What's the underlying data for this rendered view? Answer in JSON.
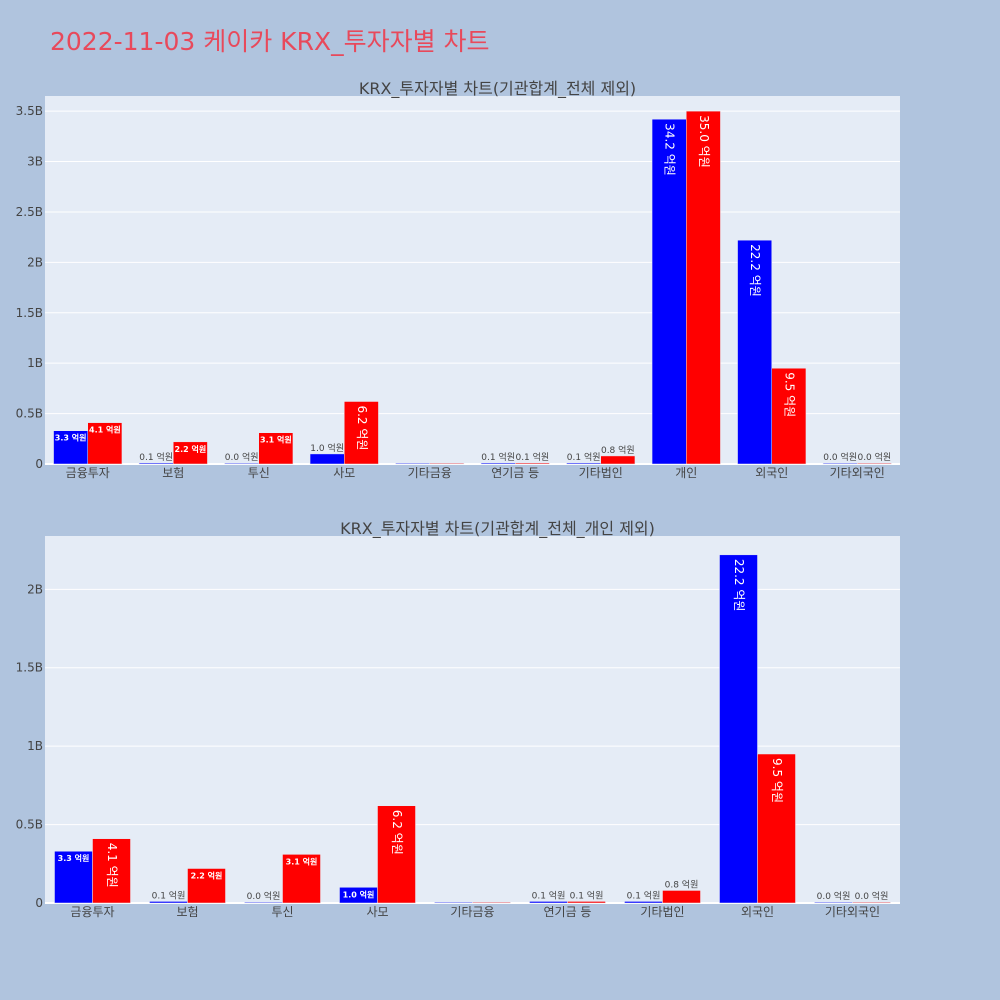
{
  "page": {
    "title": "2022-11-03 케이카 KRX_투자자별 차트"
  },
  "colors": {
    "page_bg": "#b0c4de",
    "plot_bg": "#e5ecf6",
    "grid": "#ffffff",
    "title": "#e8495b",
    "sell": "#0000ff",
    "buy": "#ff0000"
  },
  "chart_data": [
    {
      "type": "bar",
      "title": "KRX_투자자별 차트(기관합계_전체 제외)",
      "categories": [
        "금융투자",
        "보험",
        "투신",
        "사모",
        "기타금융",
        "연기금 등",
        "기타법인",
        "개인",
        "외국인",
        "기타외국인"
      ],
      "series": [
        {
          "color": "#0000ff",
          "values": [
            0.33,
            0.01,
            0.0,
            0.1,
            0.0,
            0.01,
            0.01,
            3.42,
            2.22,
            0.0
          ],
          "labels": [
            "3.3 억원",
            "0.1 억원",
            "0.0 억원",
            "1.0 억원",
            "",
            "0.1 억원",
            "0.1 억원",
            "34.2 억원",
            "22.2 억원",
            "0.0 억원"
          ]
        },
        {
          "color": "#ff0000",
          "values": [
            0.41,
            0.22,
            0.31,
            0.62,
            0.0,
            0.01,
            0.08,
            3.5,
            0.95,
            0.0
          ],
          "labels": [
            "4.1 억원",
            "2.2 억원",
            "3.1 억원",
            "6.2 억원",
            "",
            "0.1 억원",
            "0.8 억원",
            "35.0 억원",
            "9.5 억원",
            "0.0 억원"
          ]
        }
      ],
      "ylim": [
        0,
        3.65
      ],
      "yticks": [
        0,
        0.5,
        1,
        1.5,
        2,
        2.5,
        3,
        3.5
      ],
      "ytick_labels": [
        "0",
        "0.5B",
        "1B",
        "1.5B",
        "2B",
        "2.5B",
        "3B",
        "3.5B"
      ],
      "grid": true,
      "legend": false
    },
    {
      "type": "bar",
      "title": "KRX_투자자별 차트(기관합계_전체_개인 제외)",
      "categories": [
        "금융투자",
        "보험",
        "투신",
        "사모",
        "기타금융",
        "연기금 등",
        "기타법인",
        "외국인",
        "기타외국인"
      ],
      "series": [
        {
          "color": "#0000ff",
          "values": [
            0.33,
            0.01,
            0.0,
            0.1,
            0.0,
            0.01,
            0.01,
            2.22,
            0.0
          ],
          "labels": [
            "3.3 억원",
            "0.1 억원",
            "0.0 억원",
            "1.0 억원",
            "",
            "0.1 억원",
            "0.1 억원",
            "22.2 억원",
            "0.0 억원"
          ]
        },
        {
          "color": "#ff0000",
          "values": [
            0.41,
            0.22,
            0.31,
            0.62,
            0.0,
            0.01,
            0.08,
            0.95,
            0.0
          ],
          "labels": [
            "4.1 억원",
            "2.2 억원",
            "3.1 억원",
            "6.2 억원",
            "",
            "0.1 억원",
            "0.8 억원",
            "9.5 억원",
            "0.0 억원"
          ]
        }
      ],
      "ylim": [
        0,
        2.34
      ],
      "yticks": [
        0,
        0.5,
        1,
        1.5,
        2
      ],
      "ytick_labels": [
        "0",
        "0.5B",
        "1B",
        "1.5B",
        "2B"
      ],
      "grid": true,
      "legend": false
    }
  ]
}
